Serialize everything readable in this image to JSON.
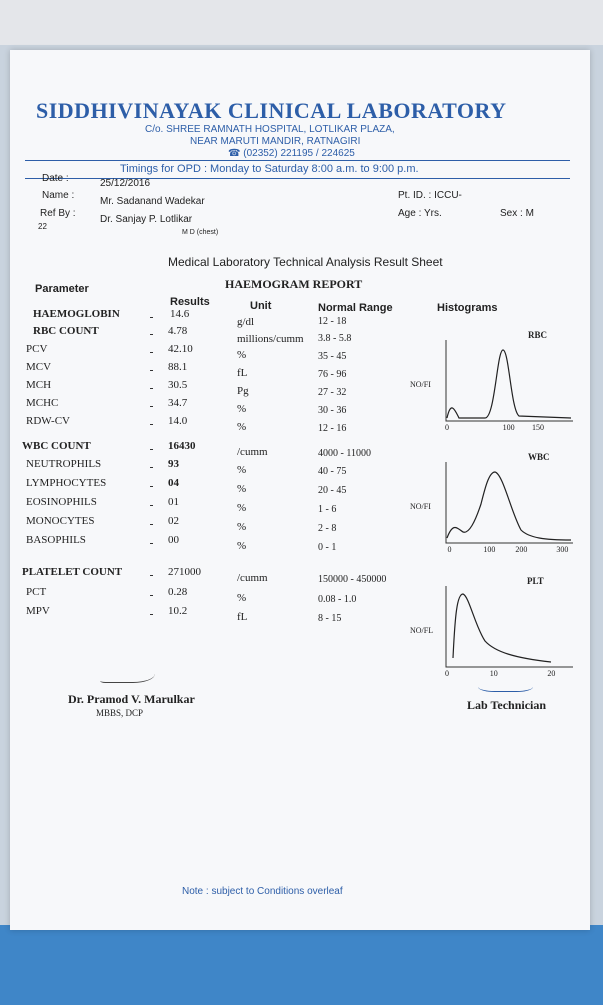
{
  "header": {
    "lab_name": "SIDDHIVINAYAK CLINICAL LABORATORY",
    "address_1": "C/o. SHREE RAMNATH HOSPITAL, LOTLIKAR PLAZA,",
    "address_2": "NEAR MARUTI MANDIR, RATNAGIRI",
    "phone": "☎ (02352) 221195 / 224625",
    "timings": "Timings for OPD : Monday to Saturday 8:00 a.m. to 9:00 p.m."
  },
  "patient": {
    "date_label": "Date  :",
    "date": "25/12/2016",
    "name_label": "Name  :",
    "name": "Mr. Sadanand Wadekar",
    "ref_label": "Ref By :",
    "ref": "Dr. Sanjay P. Lotlikar",
    "ref_degree": "M D (chest)",
    "number": "22",
    "pt_id": "Pt. ID. :  ICCU-",
    "age": "Age   :      Yrs.",
    "sex": "Sex  :  M"
  },
  "sheet_title": "Medical Laboratory Technical Analysis Result Sheet",
  "report_title": "HAEMOGRAM REPORT",
  "table": {
    "headers": [
      "Parameter",
      "Results",
      "Unit",
      "Normal Range",
      "Histograms"
    ],
    "rows": [
      [
        "HAEMOGLOBIN",
        "14.6",
        "g/dl",
        "12 - 18"
      ],
      [
        "RBC COUNT",
        "4.78",
        "millions/cumm",
        "3.8 - 5.8"
      ],
      [
        "PCV",
        "42.10",
        "%",
        "35 - 45"
      ],
      [
        "MCV",
        "88.1",
        "fL",
        "76 - 96"
      ],
      [
        "MCH",
        "30.5",
        "Pg",
        "27 - 32"
      ],
      [
        "MCHC",
        "34.7",
        "%",
        "30 - 36"
      ],
      [
        "RDW-CV",
        "14.0",
        "%",
        "12 - 16"
      ],
      [
        "WBC COUNT",
        "16430",
        "/cumm",
        "4000 - 11000"
      ],
      [
        "NEUTROPHILS",
        "93",
        "%",
        "40 - 75"
      ],
      [
        "LYMPHOCYTES",
        "04",
        "%",
        "20 - 45"
      ],
      [
        "EOSINOPHILS",
        "01",
        "%",
        "1 - 6"
      ],
      [
        "MONOCYTES",
        "02",
        "%",
        "2 - 8"
      ],
      [
        "BASOPHILS",
        "00",
        "%",
        "0 - 1"
      ],
      [
        "PLATELET COUNT",
        "271000",
        "/cumm",
        "150000 - 450000"
      ],
      [
        "PCT",
        "0.28",
        "%",
        "0.08 - 1.0"
      ],
      [
        "MPV",
        "10.2",
        "fL",
        "8 - 15"
      ]
    ]
  },
  "histograms": [
    {
      "name": "RBC",
      "y_label": "NO/FI",
      "ticks": [
        "0",
        "100",
        "150"
      ]
    },
    {
      "name": "WBC",
      "y_label": "NO/FI",
      "ticks": [
        "0",
        "100",
        "200",
        "300"
      ]
    },
    {
      "name": "PLT",
      "y_label": "NO/FL",
      "ticks": [
        "0",
        "10",
        "20"
      ]
    }
  ],
  "signatures": {
    "doctor": "Dr. Pramod V. Marulkar",
    "doctor_degree": "MBBS, DCP",
    "technician": "Lab Technician"
  },
  "footer": "Note : subject to Conditions overleaf"
}
